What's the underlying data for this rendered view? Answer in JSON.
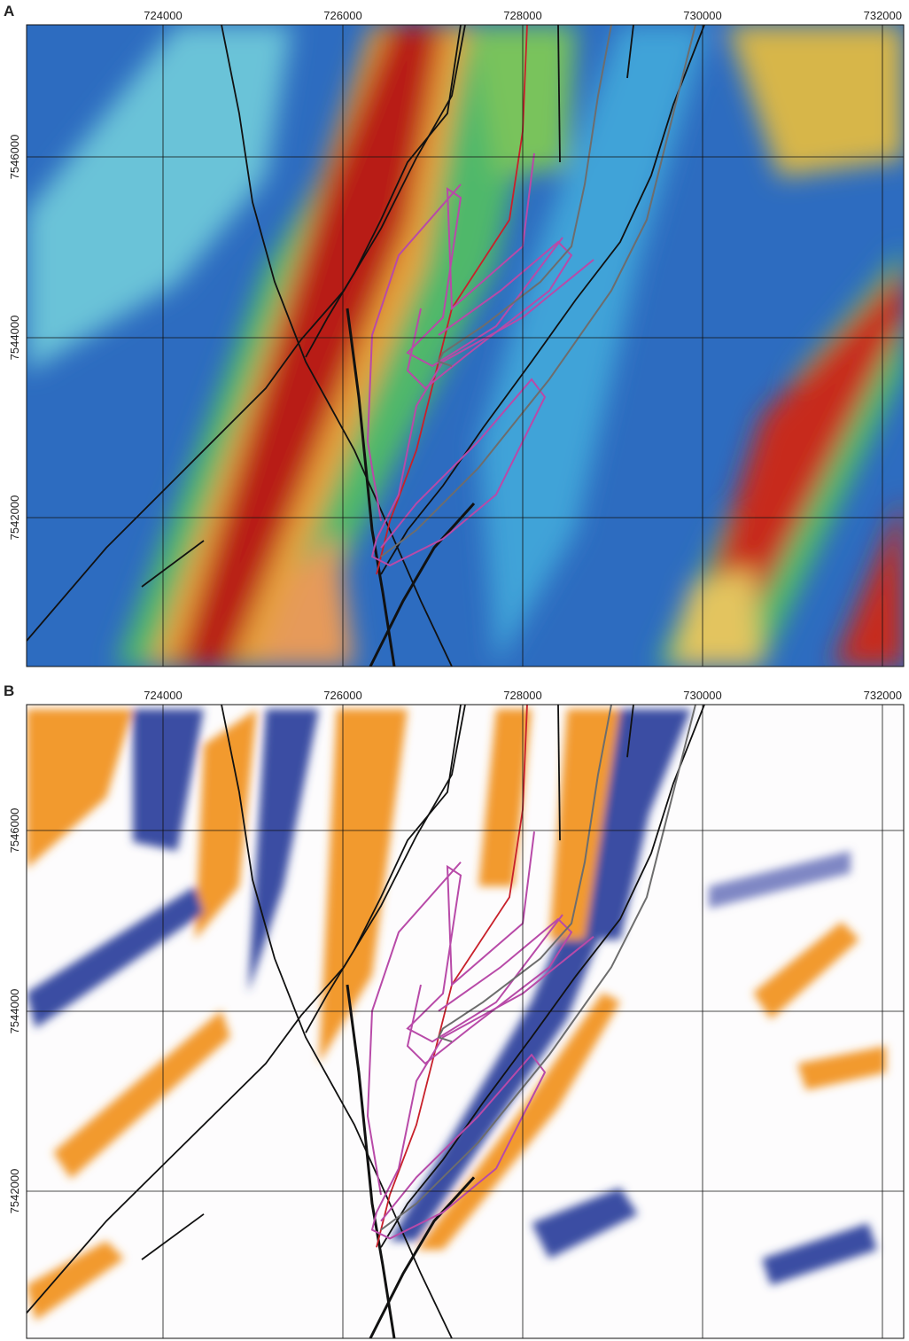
{
  "panels": [
    {
      "label": "A",
      "x_ticks": [
        724000,
        726000,
        728000,
        730000,
        732000
      ],
      "y_ticks": [
        7546000,
        7544000,
        7542000
      ]
    },
    {
      "label": "B",
      "x_ticks": [
        724000,
        726000,
        728000,
        730000,
        732000
      ],
      "y_ticks": [
        7546000,
        7544000,
        7542000
      ]
    }
  ]
}
